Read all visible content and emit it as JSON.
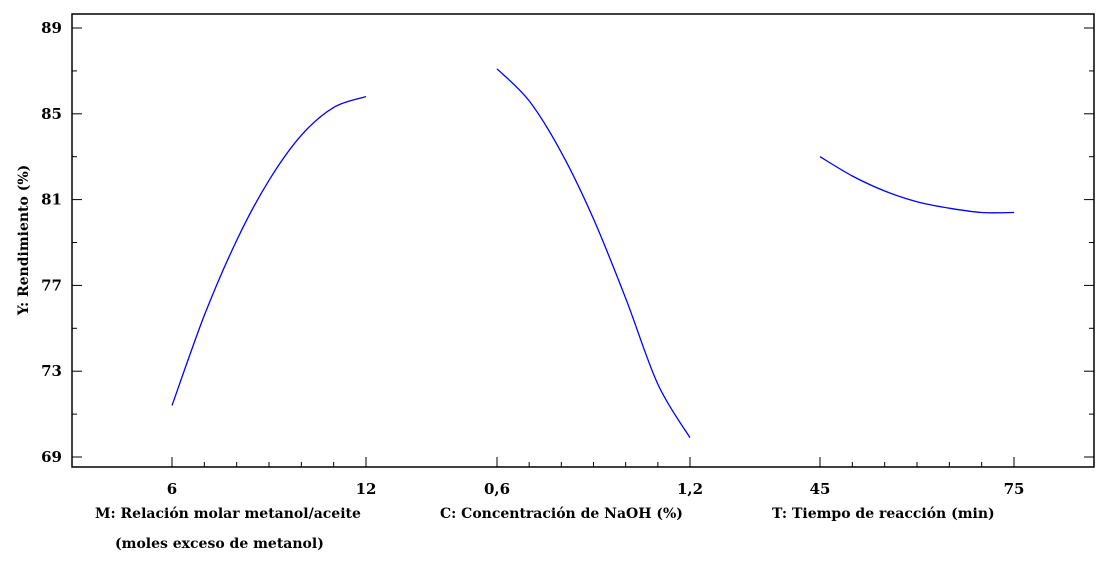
{
  "chart_data": {
    "type": "line",
    "title": "",
    "ylabel": "Y: Rendimiento (%)",
    "ylim": [
      69,
      89
    ],
    "yticks": [
      69,
      73,
      77,
      81,
      85,
      89
    ],
    "grid": false,
    "line_color": "#0000ff",
    "panels": [
      {
        "name": "M",
        "xlabel": "M: Relación molar metanol/aceite",
        "xlabel_line2": "(moles exceso de metanol)",
        "x_ticks": [
          "6",
          "12"
        ],
        "xlim": [
          6,
          12
        ],
        "x": [
          6,
          7,
          8,
          9,
          10,
          11,
          12
        ],
        "y": [
          71.4,
          75.6,
          79.1,
          81.9,
          84.0,
          85.3,
          85.8
        ]
      },
      {
        "name": "C",
        "xlabel": "C: Concentración de NaOH (%)",
        "x_ticks": [
          "0,6",
          "1,2"
        ],
        "xlim": [
          0.6,
          1.2
        ],
        "x": [
          0.6,
          0.7,
          0.8,
          0.9,
          1.0,
          1.1,
          1.2
        ],
        "y": [
          87.1,
          85.6,
          83.2,
          80.1,
          76.4,
          72.4,
          69.9
        ]
      },
      {
        "name": "T",
        "xlabel": "T: Tiempo de reacción (min)",
        "x_ticks": [
          "45",
          "75"
        ],
        "xlim": [
          45,
          75
        ],
        "x": [
          45,
          50,
          55,
          60,
          65,
          70,
          75
        ],
        "y": [
          83.0,
          82.1,
          81.4,
          80.9,
          80.6,
          80.4,
          80.4
        ]
      }
    ]
  }
}
